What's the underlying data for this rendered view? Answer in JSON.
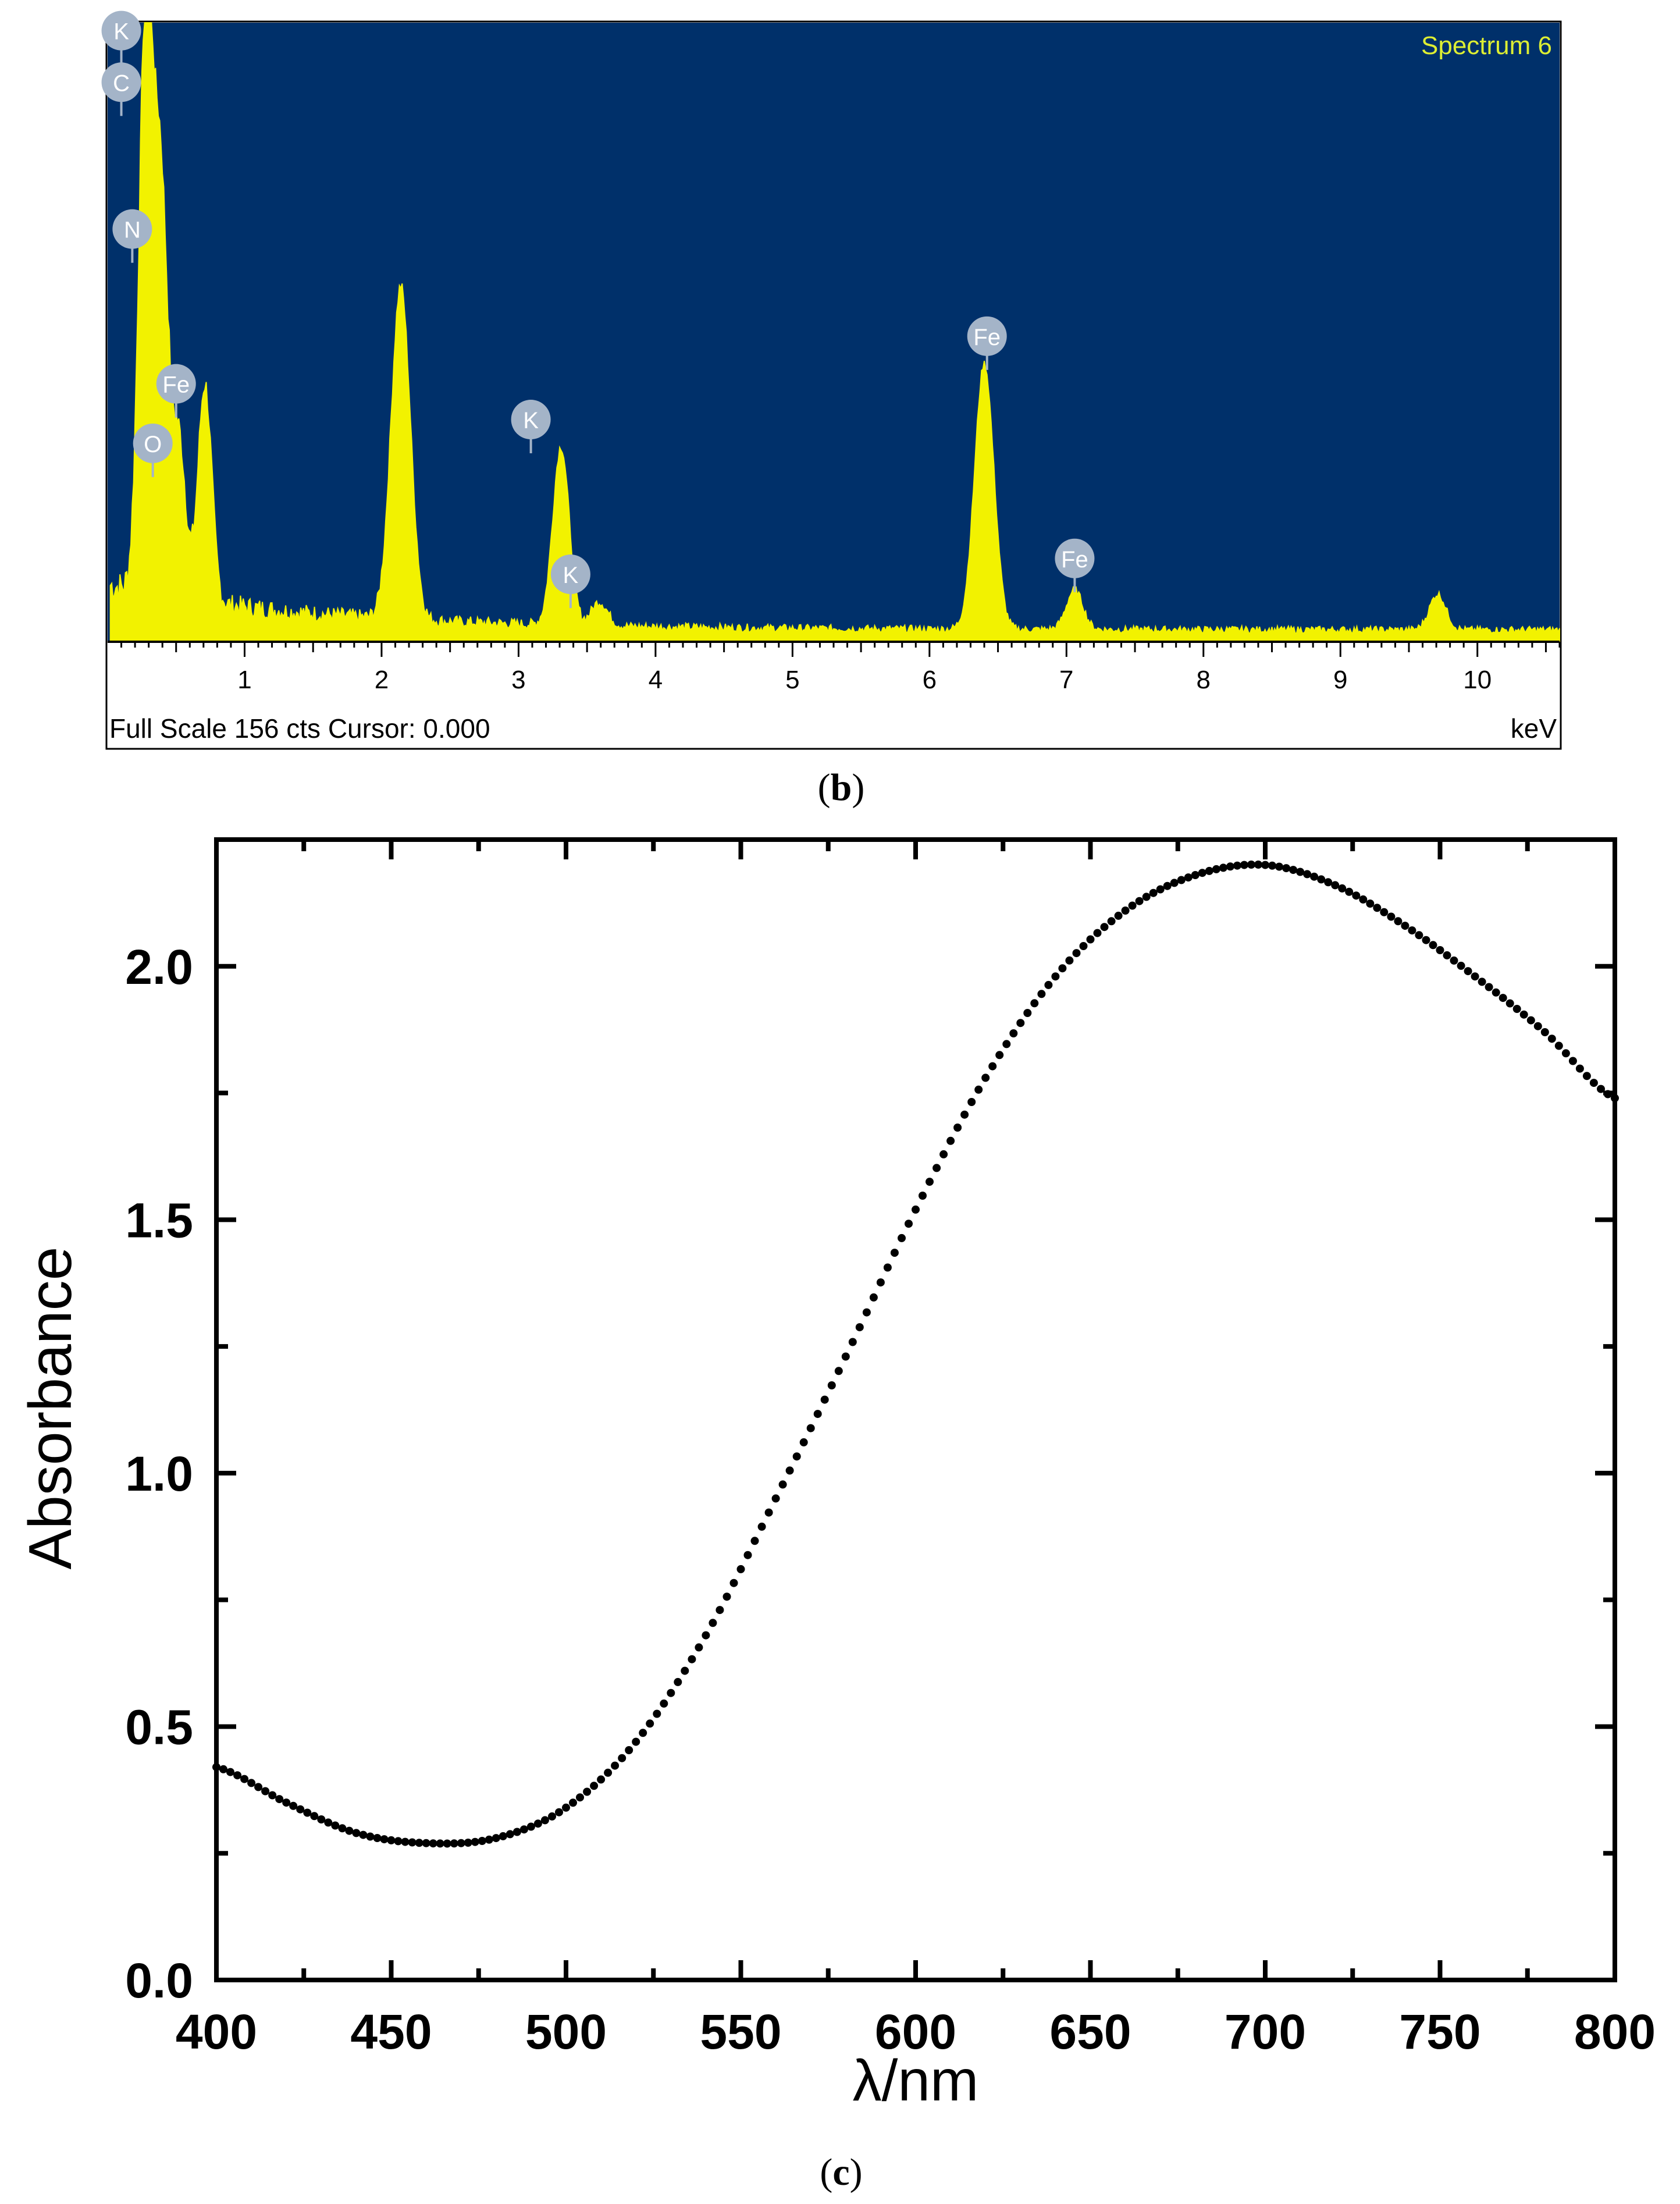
{
  "colors": {
    "eds_background": "#00306A",
    "eds_spectrum": "#F2F200",
    "eds_title": "#DDEE33",
    "eds_label_bubble": "#A4B4C8",
    "uv_curve": "#000000"
  },
  "chart_data": [
    {
      "type": "area",
      "panel_label": "b",
      "title": "Spectrum 6",
      "xlabel": "keV",
      "footer": "Full Scale 156 cts Cursor: 0.000",
      "xlim": [
        0,
        10.6
      ],
      "ylim": [
        0,
        156
      ],
      "xticks": [
        1,
        2,
        3,
        4,
        5,
        6,
        7,
        8,
        9,
        10
      ],
      "grid": false,
      "peaks": [
        {
          "element": "C",
          "x": 0.28,
          "y": 150
        },
        {
          "element": "N",
          "x": 0.39,
          "y": 100
        },
        {
          "element": "O",
          "x": 0.52,
          "y": 40
        },
        {
          "element": "Fe",
          "x": 0.71,
          "y": 55
        },
        {
          "element": "",
          "x": 2.14,
          "y": 84
        },
        {
          "element": "K",
          "x": 3.31,
          "y": 45
        },
        {
          "element": "K",
          "x": 3.59,
          "y": 6
        },
        {
          "element": "Fe",
          "x": 6.4,
          "y": 67
        },
        {
          "element": "Fe",
          "x": 7.06,
          "y": 10
        },
        {
          "element": "",
          "x": 9.71,
          "y": 9
        }
      ],
      "annotations": [
        {
          "text": "K",
          "x": 0.1,
          "y": 154
        },
        {
          "text": "C",
          "x": 0.1,
          "y": 141
        },
        {
          "text": "N",
          "x": 0.18,
          "y": 104
        },
        {
          "text": "Fe",
          "x": 0.5,
          "y": 65
        },
        {
          "text": "O",
          "x": 0.33,
          "y": 50
        },
        {
          "text": "K",
          "x": 3.09,
          "y": 56
        },
        {
          "text": "K",
          "x": 3.38,
          "y": 17
        },
        {
          "text": "Fe",
          "x": 6.42,
          "y": 77
        },
        {
          "text": "Fe",
          "x": 7.06,
          "y": 21
        }
      ]
    },
    {
      "type": "line",
      "panel_label": "c",
      "xlabel": "λ/nm",
      "ylabel": "Absorbance",
      "xlim": [
        400,
        800
      ],
      "ylim": [
        0,
        2.25
      ],
      "xticks": [
        400,
        450,
        500,
        550,
        600,
        650,
        700,
        750,
        800
      ],
      "yticks": [
        0.0,
        0.5,
        1.0,
        1.5,
        2.0
      ],
      "ytick_labels": [
        "0.0",
        "0.5",
        "1.0",
        "1.5",
        "2.0"
      ],
      "grid": false,
      "x": [
        400,
        420,
        440,
        460,
        480,
        500,
        520,
        540,
        560,
        580,
        600,
        620,
        640,
        660,
        680,
        700,
        720,
        740,
        760,
        780,
        800
      ],
      "y": [
        0.42,
        0.35,
        0.29,
        0.27,
        0.28,
        0.34,
        0.47,
        0.68,
        0.95,
        1.23,
        1.52,
        1.78,
        1.98,
        2.11,
        2.18,
        2.2,
        2.16,
        2.08,
        1.98,
        1.87,
        1.74
      ]
    }
  ]
}
